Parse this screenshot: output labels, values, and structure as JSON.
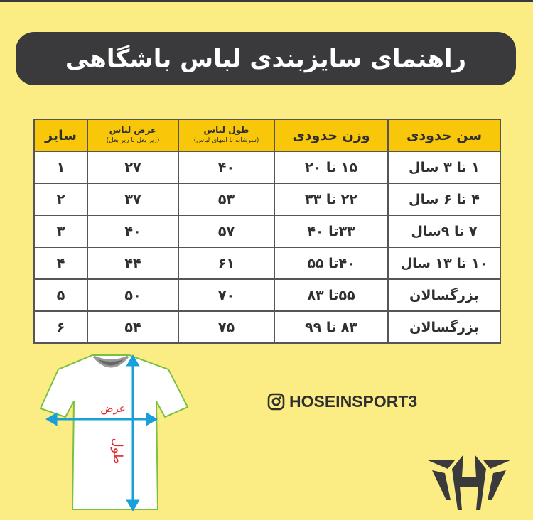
{
  "title": "راهنمای سایزبندی لباس باشگاهی",
  "table": {
    "headers": {
      "age": "سن حدودی",
      "weight": "وزن حدودی",
      "length": "طول لباس",
      "length_sub": "(سرشانه تا انتهای لباس)",
      "width": "عرض لباس",
      "width_sub": "(زیر بغل تا زیر بغل)",
      "size": "سایز"
    },
    "rows": [
      {
        "age": "۱ تا ۳ سال",
        "weight": "۱۵ تا ۲۰",
        "length": "۴۰",
        "width": "۲۷",
        "size": "۱"
      },
      {
        "age": "۴ تا ۶ سال",
        "weight": "۲۲ تا ۳۳",
        "length": "۵۳",
        "width": "۳۷",
        "size": "۲"
      },
      {
        "age": "۷ تا ۹سال",
        "weight": "۳۳تا ۴۰",
        "length": "۵۷",
        "width": "۴۰",
        "size": "۳"
      },
      {
        "age": "۱۰ تا ۱۳ سال",
        "weight": "۴۰تا ۵۵",
        "length": "۶۱",
        "width": "۴۴",
        "size": "۴"
      },
      {
        "age": "بزرگسالان",
        "weight": "۵۵تا ۸۳",
        "length": "۷۰",
        "width": "۵۰",
        "size": "۵"
      },
      {
        "age": "بزرگسالان",
        "weight": "۸۳ تا ۹۹",
        "length": "۷۵",
        "width": "۵۴",
        "size": "۶"
      }
    ]
  },
  "shirt": {
    "width_label": "عرض",
    "length_label": "طول"
  },
  "instagram": {
    "icon": "instagram-icon",
    "handle": "HOSEINSPORT3"
  },
  "logo": {
    "icon": "h-logo"
  },
  "colors": {
    "background": "#fbec83",
    "banner": "#3a3a3c",
    "header": "#f8c70a",
    "arrow": "#1aa0d8",
    "label": "#e0262b"
  }
}
